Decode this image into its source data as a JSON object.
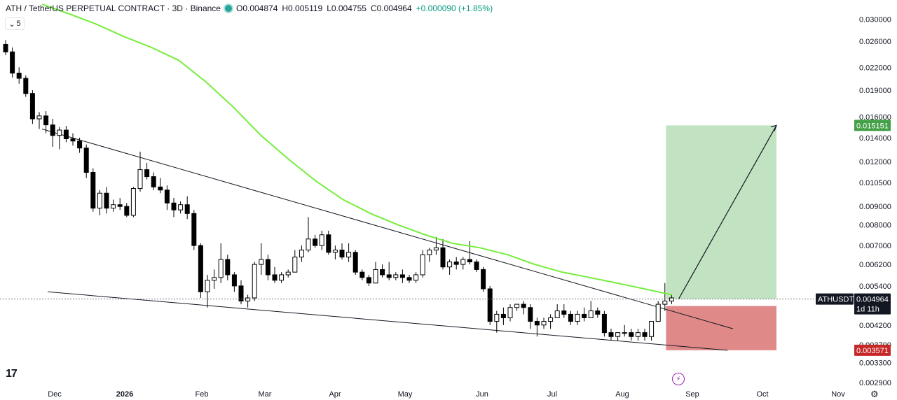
{
  "header": {
    "symbol_title": "ATH / TetherUS PERPETUAL CONTRACT · 3D · Binance",
    "open": "O0.004874",
    "high": "H0.005119",
    "low": "L0.004755",
    "close": "C0.004964",
    "change": "+0.000090 (+1.85%)",
    "collapse_label": "5"
  },
  "price_axis": {
    "ticks": [
      "0.030000",
      "0.026000",
      "0.022000",
      "0.019000",
      "0.016000",
      "0.014000",
      "0.012000",
      "0.010500",
      "0.009000",
      "0.008000",
      "0.007000",
      "0.006200",
      "0.005400",
      "0.004200",
      "0.003700",
      "0.003300",
      "0.002900"
    ],
    "tick_values": [
      0.03,
      0.026,
      0.022,
      0.019,
      0.016,
      0.014,
      0.012,
      0.0105,
      0.009,
      0.008,
      0.007,
      0.0062,
      0.0054,
      0.0042,
      0.0037,
      0.0033,
      0.0029
    ],
    "target_label": "0.015151",
    "stop_label": "0.003571",
    "symbol_badge": "ATHUSDT.P",
    "last_price_label": "0.004964",
    "countdown_label": "1d 11h"
  },
  "time_axis": {
    "labels": [
      "Dec",
      "2026",
      "Feb",
      "Mar",
      "Apr",
      "May",
      "Jun",
      "Jul",
      "Aug",
      "Sep",
      "Oct",
      "Nov"
    ]
  },
  "colors": {
    "up": "#ffffff",
    "down": "#000000",
    "ma_line": "#76ee3c",
    "target_zone": "rgba(76,175,80,0.35)",
    "stop_zone": "rgba(198,40,40,0.55)",
    "target_badge": "#43a047",
    "stop_badge": "#c62828"
  },
  "icons": {
    "logo": "tradingview-logo",
    "settings": "gear-icon",
    "events": "lightning-icon"
  },
  "chart_data": {
    "type": "candlestick",
    "scale": "log",
    "timeframe": "3D",
    "ylim": [
      0.0028,
      0.031
    ],
    "ohlc": [
      [
        0.0255,
        0.0262,
        0.0238,
        0.0243
      ],
      [
        0.0243,
        0.025,
        0.0206,
        0.0212
      ],
      [
        0.0212,
        0.022,
        0.0198,
        0.0205
      ],
      [
        0.0205,
        0.0209,
        0.0182,
        0.0186
      ],
      [
        0.0186,
        0.019,
        0.0153,
        0.0158
      ],
      [
        0.0158,
        0.0165,
        0.0148,
        0.0161
      ],
      [
        0.0161,
        0.0166,
        0.0144,
        0.0152
      ],
      [
        0.0152,
        0.0158,
        0.0132,
        0.0142
      ],
      [
        0.0142,
        0.015,
        0.013,
        0.0147
      ],
      [
        0.0147,
        0.0151,
        0.0136,
        0.0139
      ],
      [
        0.0139,
        0.0144,
        0.0133,
        0.0137
      ],
      [
        0.0137,
        0.014,
        0.0127,
        0.0131
      ],
      [
        0.0131,
        0.0134,
        0.0108,
        0.0112
      ],
      [
        0.0112,
        0.0115,
        0.0087,
        0.0089
      ],
      [
        0.0089,
        0.01,
        0.0085,
        0.0098
      ],
      [
        0.0098,
        0.0102,
        0.0086,
        0.0089
      ],
      [
        0.0089,
        0.0094,
        0.0087,
        0.0091
      ],
      [
        0.0091,
        0.0095,
        0.0088,
        0.009
      ],
      [
        0.009,
        0.0092,
        0.0084,
        0.0085
      ],
      [
        0.0085,
        0.0102,
        0.0084,
        0.0101
      ],
      [
        0.0101,
        0.0128,
        0.0099,
        0.0114
      ],
      [
        0.0114,
        0.0119,
        0.0107,
        0.0109
      ],
      [
        0.0109,
        0.0112,
        0.01,
        0.0102
      ],
      [
        0.0102,
        0.0108,
        0.0098,
        0.01
      ],
      [
        0.01,
        0.0103,
        0.0088,
        0.0092
      ],
      [
        0.0092,
        0.0095,
        0.0084,
        0.0088
      ],
      [
        0.0088,
        0.0093,
        0.0086,
        0.0091
      ],
      [
        0.0091,
        0.0096,
        0.0083,
        0.0086
      ],
      [
        0.0086,
        0.0088,
        0.0068,
        0.007
      ],
      [
        0.007,
        0.0071,
        0.005,
        0.0052
      ],
      [
        0.0052,
        0.0058,
        0.0047,
        0.0056
      ],
      [
        0.0056,
        0.006,
        0.0053,
        0.0057
      ],
      [
        0.0057,
        0.0071,
        0.0055,
        0.0064
      ],
      [
        0.0064,
        0.0066,
        0.0056,
        0.0058
      ],
      [
        0.0058,
        0.0059,
        0.0052,
        0.0054
      ],
      [
        0.0054,
        0.0056,
        0.0048,
        0.0049
      ],
      [
        0.0049,
        0.0051,
        0.0047,
        0.005
      ],
      [
        0.005,
        0.0063,
        0.0049,
        0.0062
      ],
      [
        0.0062,
        0.0071,
        0.0058,
        0.0064
      ],
      [
        0.0064,
        0.0066,
        0.0056,
        0.0058
      ],
      [
        0.0058,
        0.0061,
        0.0055,
        0.0056
      ],
      [
        0.0056,
        0.0059,
        0.0055,
        0.0058
      ],
      [
        0.0058,
        0.006,
        0.0057,
        0.0059
      ],
      [
        0.0059,
        0.0068,
        0.0059,
        0.0065
      ],
      [
        0.0065,
        0.007,
        0.0063,
        0.0068
      ],
      [
        0.0068,
        0.0084,
        0.0067,
        0.0073
      ],
      [
        0.0073,
        0.0075,
        0.0069,
        0.007
      ],
      [
        0.007,
        0.0077,
        0.0068,
        0.0075
      ],
      [
        0.0075,
        0.0077,
        0.0066,
        0.0067
      ],
      [
        0.0067,
        0.007,
        0.0064,
        0.0068
      ],
      [
        0.0068,
        0.0071,
        0.0064,
        0.0065
      ],
      [
        0.0065,
        0.0071,
        0.0063,
        0.0067
      ],
      [
        0.0067,
        0.0068,
        0.0058,
        0.0059
      ],
      [
        0.0059,
        0.006,
        0.0056,
        0.0057
      ],
      [
        0.0057,
        0.0058,
        0.0054,
        0.0055
      ],
      [
        0.0055,
        0.0063,
        0.0055,
        0.006
      ],
      [
        0.006,
        0.0062,
        0.0057,
        0.0058
      ],
      [
        0.0058,
        0.0063,
        0.0056,
        0.0057
      ],
      [
        0.0057,
        0.0059,
        0.0056,
        0.0058
      ],
      [
        0.0058,
        0.006,
        0.0055,
        0.0057
      ],
      [
        0.0057,
        0.0058,
        0.0055,
        0.0056
      ],
      [
        0.0056,
        0.0059,
        0.0055,
        0.0058
      ],
      [
        0.0058,
        0.0068,
        0.0057,
        0.0066
      ],
      [
        0.0066,
        0.0069,
        0.0063,
        0.0068
      ],
      [
        0.0068,
        0.0074,
        0.0066,
        0.0069
      ],
      [
        0.0069,
        0.0073,
        0.006,
        0.0061
      ],
      [
        0.0061,
        0.0064,
        0.0058,
        0.0063
      ],
      [
        0.0063,
        0.0065,
        0.006,
        0.0062
      ],
      [
        0.0062,
        0.0065,
        0.006,
        0.0064
      ],
      [
        0.0064,
        0.0072,
        0.0062,
        0.0063
      ],
      [
        0.0063,
        0.0064,
        0.0059,
        0.006
      ],
      [
        0.006,
        0.0061,
        0.0052,
        0.0053
      ],
      [
        0.0053,
        0.0054,
        0.0042,
        0.0043
      ],
      [
        0.0043,
        0.0046,
        0.004,
        0.0045
      ],
      [
        0.0045,
        0.0047,
        0.0042,
        0.0044
      ],
      [
        0.0044,
        0.0048,
        0.0043,
        0.0047
      ],
      [
        0.0047,
        0.0048,
        0.0046,
        0.0048
      ],
      [
        0.0048,
        0.0049,
        0.0045,
        0.0047
      ],
      [
        0.0047,
        0.0048,
        0.0041,
        0.0043
      ],
      [
        0.0043,
        0.0044,
        0.0039,
        0.0042
      ],
      [
        0.0042,
        0.0044,
        0.0041,
        0.0043
      ],
      [
        0.0043,
        0.0045,
        0.0041,
        0.0044
      ],
      [
        0.0044,
        0.0048,
        0.0044,
        0.0046
      ],
      [
        0.0046,
        0.0048,
        0.0044,
        0.0045
      ],
      [
        0.0045,
        0.0046,
        0.0042,
        0.0043
      ],
      [
        0.0043,
        0.0046,
        0.0042,
        0.0045
      ],
      [
        0.0045,
        0.0047,
        0.0043,
        0.0044
      ],
      [
        0.0044,
        0.0049,
        0.0044,
        0.0046
      ],
      [
        0.0046,
        0.0047,
        0.0044,
        0.0045
      ],
      [
        0.0045,
        0.0046,
        0.0039,
        0.004
      ],
      [
        0.004,
        0.0041,
        0.0038,
        0.0039
      ],
      [
        0.0039,
        0.004,
        0.0038,
        0.004
      ],
      [
        0.004,
        0.0042,
        0.0039,
        0.004
      ],
      [
        0.004,
        0.0041,
        0.0038,
        0.0039
      ],
      [
        0.0039,
        0.0041,
        0.0038,
        0.004
      ],
      [
        0.004,
        0.0041,
        0.0038,
        0.0039
      ],
      [
        0.0039,
        0.0043,
        0.0038,
        0.0043
      ],
      [
        0.0043,
        0.0049,
        0.0043,
        0.0048
      ],
      [
        0.0048,
        0.0055,
        0.0046,
        0.0049
      ],
      [
        0.0049,
        0.0051,
        0.0048,
        0.005
      ]
    ],
    "ma_line": [
      0.033,
      0.031,
      0.029,
      0.0268,
      0.025,
      0.023,
      0.02,
      0.017,
      0.0142,
      0.0122,
      0.0106,
      0.0094,
      0.0086,
      0.008,
      0.0075,
      0.0071,
      0.0069,
      0.0066,
      0.0062,
      0.0059,
      0.0057,
      0.0055,
      0.0053,
      0.0051
    ],
    "annotations": [
      {
        "type": "trendline",
        "label": "upper wedge line"
      },
      {
        "type": "trendline",
        "label": "lower wedge line"
      },
      {
        "type": "long_position",
        "entry": 0.004964,
        "target": 0.015151,
        "stop": 0.003571
      }
    ]
  }
}
